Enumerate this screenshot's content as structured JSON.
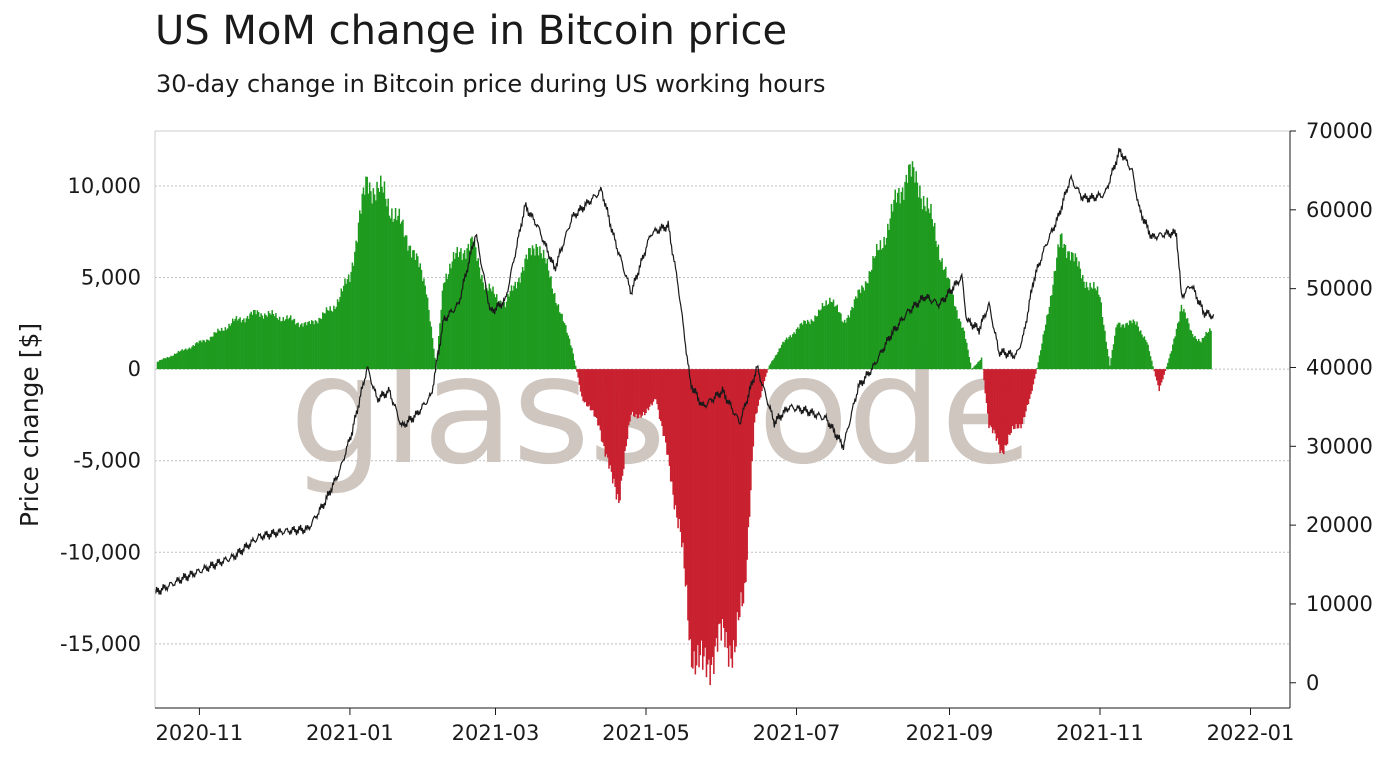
{
  "chart_data": {
    "type": "bar",
    "title": "US MoM change in Bitcoin price",
    "subtitle": "30-day change in Bitcoin price during US working hours",
    "ylabel": "Price change [$]",
    "ylabel_right": "",
    "watermark": "glassnode",
    "ylim": [
      -18500,
      13000
    ],
    "ylim_right": [
      -3200,
      70000
    ],
    "y_ticks": [
      10000,
      5000,
      0,
      -5000,
      -10000,
      -15000
    ],
    "y_tick_labels": [
      "10,000",
      "5,000",
      "0",
      "-5,000",
      "-10,000",
      "-15,000"
    ],
    "y_right_ticks": [
      70000,
      60000,
      50000,
      40000,
      30000,
      20000,
      10000,
      0
    ],
    "y_right_tick_labels": [
      "70000",
      "60000",
      "50000",
      "40000",
      "30000",
      "20000",
      "10000",
      "0"
    ],
    "x_ticks": [
      "2020-11-01",
      "2021-01-01",
      "2021-03-01",
      "2021-05-01",
      "2021-07-01",
      "2021-09-01",
      "2021-11-01",
      "2022-01-01"
    ],
    "x_tick_labels": [
      "2020-11",
      "2021-01",
      "2021-03",
      "2021-05",
      "2021-07",
      "2021-09",
      "2021-11",
      "2022-01"
    ],
    "xlim": [
      "2020-10-14",
      "2022-01-17"
    ],
    "grid": true,
    "colors": {
      "positive": "#1e9a1e",
      "negative": "#c8202e",
      "price_line": "#1a1a1a",
      "grid": "#bfbfbf",
      "watermark": "#cfc6c0"
    },
    "series": [
      {
        "name": "",
        "axis": "left",
        "kind": "bar",
        "anchors": [
          [
            "2020-10-15",
            400
          ],
          [
            "2020-10-25",
            1000
          ],
          [
            "2020-11-05",
            1700
          ],
          [
            "2020-11-15",
            2600
          ],
          [
            "2020-11-25",
            3100
          ],
          [
            "2020-12-05",
            2800
          ],
          [
            "2020-12-15",
            2400
          ],
          [
            "2020-12-25",
            3300
          ],
          [
            "2021-01-01",
            5000
          ],
          [
            "2021-01-05",
            8300
          ],
          [
            "2021-01-08",
            10200
          ],
          [
            "2021-01-15",
            9500
          ],
          [
            "2021-01-25",
            7000
          ],
          [
            "2021-02-01",
            4500
          ],
          [
            "2021-02-05",
            0
          ],
          [
            "2021-02-08",
            5000
          ],
          [
            "2021-02-15",
            6500
          ],
          [
            "2021-02-20",
            6800
          ],
          [
            "2021-02-25",
            4500
          ],
          [
            "2021-03-05",
            3500
          ],
          [
            "2021-03-12",
            5500
          ],
          [
            "2021-03-18",
            7000
          ],
          [
            "2021-03-22",
            5500
          ],
          [
            "2021-03-28",
            2800
          ],
          [
            "2021-04-01",
            1200
          ],
          [
            "2021-04-05",
            -1500
          ],
          [
            "2021-04-12",
            -3000
          ],
          [
            "2021-04-17",
            -6000
          ],
          [
            "2021-04-20",
            -7000
          ],
          [
            "2021-04-25",
            -2500
          ],
          [
            "2021-05-01",
            -2500
          ],
          [
            "2021-05-05",
            -1500
          ],
          [
            "2021-05-10",
            -5000
          ],
          [
            "2021-05-15",
            -9000
          ],
          [
            "2021-05-19",
            -15000
          ],
          [
            "2021-05-24",
            -16500
          ],
          [
            "2021-05-28",
            -15500
          ],
          [
            "2021-06-02",
            -14500
          ],
          [
            "2021-06-06",
            -15500
          ],
          [
            "2021-06-10",
            -12000
          ],
          [
            "2021-06-14",
            -3000
          ],
          [
            "2021-06-18",
            -600
          ],
          [
            "2021-06-20",
            200
          ],
          [
            "2021-06-25",
            1300
          ],
          [
            "2021-07-01",
            2200
          ],
          [
            "2021-07-10",
            3000
          ],
          [
            "2021-07-15",
            4000
          ],
          [
            "2021-07-20",
            2500
          ],
          [
            "2021-07-28",
            4500
          ],
          [
            "2021-08-05",
            7000
          ],
          [
            "2021-08-10",
            9000
          ],
          [
            "2021-08-15",
            10800
          ],
          [
            "2021-08-20",
            10000
          ],
          [
            "2021-08-25",
            8000
          ],
          [
            "2021-09-01",
            4500
          ],
          [
            "2021-09-07",
            2000
          ],
          [
            "2021-09-10",
            0
          ],
          [
            "2021-09-14",
            600
          ],
          [
            "2021-09-17",
            -3000
          ],
          [
            "2021-09-22",
            -4500
          ],
          [
            "2021-09-26",
            -3500
          ],
          [
            "2021-09-30",
            -3000
          ],
          [
            "2021-10-04",
            -1500
          ],
          [
            "2021-10-08",
            1000
          ],
          [
            "2021-10-12",
            4000
          ],
          [
            "2021-10-16",
            7000
          ],
          [
            "2021-10-20",
            6500
          ],
          [
            "2021-10-25",
            5000
          ],
          [
            "2021-11-01",
            4000
          ],
          [
            "2021-11-05",
            200
          ],
          [
            "2021-11-08",
            2500
          ],
          [
            "2021-11-12",
            2500
          ],
          [
            "2021-11-16",
            2500
          ],
          [
            "2021-11-20",
            1500
          ],
          [
            "2021-11-25",
            -1200
          ],
          [
            "2021-11-30",
            1000
          ],
          [
            "2021-12-04",
            3500
          ],
          [
            "2021-12-08",
            2000
          ],
          [
            "2021-12-12",
            1500
          ],
          [
            "2021-12-16",
            2200
          ]
        ]
      },
      {
        "name": "",
        "axis": "right",
        "kind": "line",
        "anchors": [
          [
            "2020-10-14",
            11400
          ],
          [
            "2020-10-25",
            13200
          ],
          [
            "2020-11-05",
            14700
          ],
          [
            "2020-11-15",
            16000
          ],
          [
            "2020-11-25",
            18500
          ],
          [
            "2020-12-05",
            19200
          ],
          [
            "2020-12-15",
            19500
          ],
          [
            "2020-12-22",
            23000
          ],
          [
            "2020-12-28",
            27000
          ],
          [
            "2021-01-02",
            32000
          ],
          [
            "2021-01-08",
            40000
          ],
          [
            "2021-01-12",
            36000
          ],
          [
            "2021-01-17",
            37000
          ],
          [
            "2021-01-22",
            32500
          ],
          [
            "2021-01-28",
            34000
          ],
          [
            "2021-02-03",
            36500
          ],
          [
            "2021-02-08",
            46000
          ],
          [
            "2021-02-14",
            48000
          ],
          [
            "2021-02-21",
            57000
          ],
          [
            "2021-02-27",
            47000
          ],
          [
            "2021-03-05",
            48500
          ],
          [
            "2021-03-13",
            60500
          ],
          [
            "2021-03-18",
            58000
          ],
          [
            "2021-03-25",
            52500
          ],
          [
            "2021-04-01",
            59000
          ],
          [
            "2021-04-13",
            62500
          ],
          [
            "2021-04-18",
            56500
          ],
          [
            "2021-04-25",
            49500
          ],
          [
            "2021-05-03",
            57000
          ],
          [
            "2021-05-10",
            58000
          ],
          [
            "2021-05-14",
            50500
          ],
          [
            "2021-05-19",
            38000
          ],
          [
            "2021-05-24",
            35000
          ],
          [
            "2021-06-01",
            37000
          ],
          [
            "2021-06-08",
            33000
          ],
          [
            "2021-06-15",
            40000
          ],
          [
            "2021-06-22",
            33000
          ],
          [
            "2021-06-28",
            35000
          ],
          [
            "2021-07-05",
            34500
          ],
          [
            "2021-07-13",
            33500
          ],
          [
            "2021-07-20",
            30000
          ],
          [
            "2021-07-26",
            37500
          ],
          [
            "2021-08-01",
            40000
          ],
          [
            "2021-08-08",
            44000
          ],
          [
            "2021-08-15",
            47000
          ],
          [
            "2021-08-22",
            49000
          ],
          [
            "2021-08-28",
            48000
          ],
          [
            "2021-09-06",
            51500
          ],
          [
            "2021-09-08",
            46000
          ],
          [
            "2021-09-13",
            44800
          ],
          [
            "2021-09-17",
            48000
          ],
          [
            "2021-09-21",
            42000
          ],
          [
            "2021-09-28",
            41500
          ],
          [
            "2021-10-01",
            44000
          ],
          [
            "2021-10-05",
            51000
          ],
          [
            "2021-10-10",
            55500
          ],
          [
            "2021-10-15",
            59000
          ],
          [
            "2021-10-20",
            64000
          ],
          [
            "2021-10-25",
            61500
          ],
          [
            "2021-10-29",
            61500
          ],
          [
            "2021-11-03",
            62000
          ],
          [
            "2021-11-09",
            67500
          ],
          [
            "2021-11-14",
            65000
          ],
          [
            "2021-11-17",
            60000
          ],
          [
            "2021-11-22",
            56500
          ],
          [
            "2021-11-28",
            57000
          ],
          [
            "2021-12-02",
            57000
          ],
          [
            "2021-12-04",
            49000
          ],
          [
            "2021-12-08",
            50500
          ],
          [
            "2021-12-13",
            47000
          ],
          [
            "2021-12-17",
            46500
          ]
        ]
      }
    ]
  }
}
